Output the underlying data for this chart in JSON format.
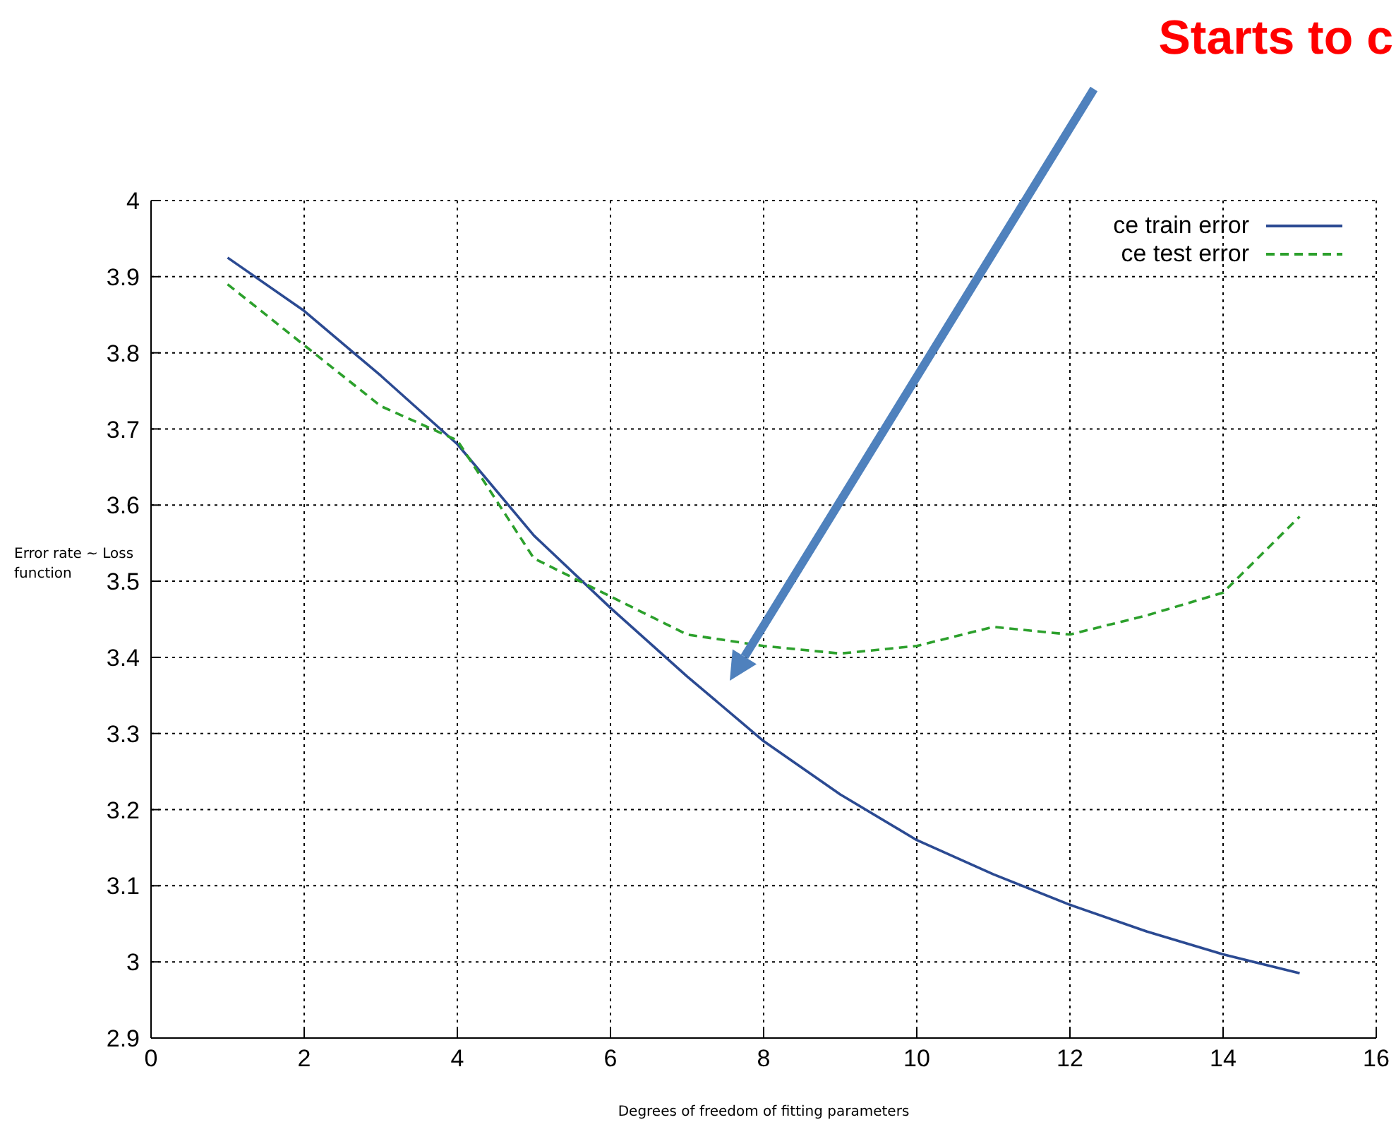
{
  "chart_data": {
    "type": "line",
    "xlabel": "Degrees of freedom of fitting parameters",
    "ylabel": "Error rate ~ Loss function",
    "x": [
      1,
      2,
      3,
      4,
      5,
      6,
      7,
      8,
      9,
      10,
      11,
      12,
      13,
      14,
      15
    ],
    "series": [
      {
        "name": "ce train error",
        "color": "#2b4a92",
        "line_style": "solid",
        "values": [
          3.925,
          3.855,
          3.77,
          3.68,
          3.56,
          3.465,
          3.375,
          3.29,
          3.22,
          3.16,
          3.115,
          3.075,
          3.04,
          3.01,
          2.985
        ]
      },
      {
        "name": "ce test error",
        "color": "#2ca02c",
        "line_style": "dashed",
        "values": [
          3.89,
          3.81,
          3.73,
          3.685,
          3.53,
          3.48,
          3.43,
          3.415,
          3.405,
          3.415,
          3.44,
          3.43,
          3.455,
          3.485,
          3.585
        ]
      }
    ],
    "xlim": [
      0,
      16
    ],
    "xticks": [
      0,
      2,
      4,
      6,
      8,
      10,
      12,
      14,
      16
    ],
    "ylim": [
      2.9,
      4
    ],
    "yticks": [
      2.9,
      3,
      3.1,
      3.2,
      3.3,
      3.4,
      3.5,
      3.6,
      3.7,
      3.8,
      3.9,
      4
    ],
    "grid": true,
    "legend": "top right",
    "marker": "none",
    "annotations": [
      "Starts to c"
    ]
  }
}
